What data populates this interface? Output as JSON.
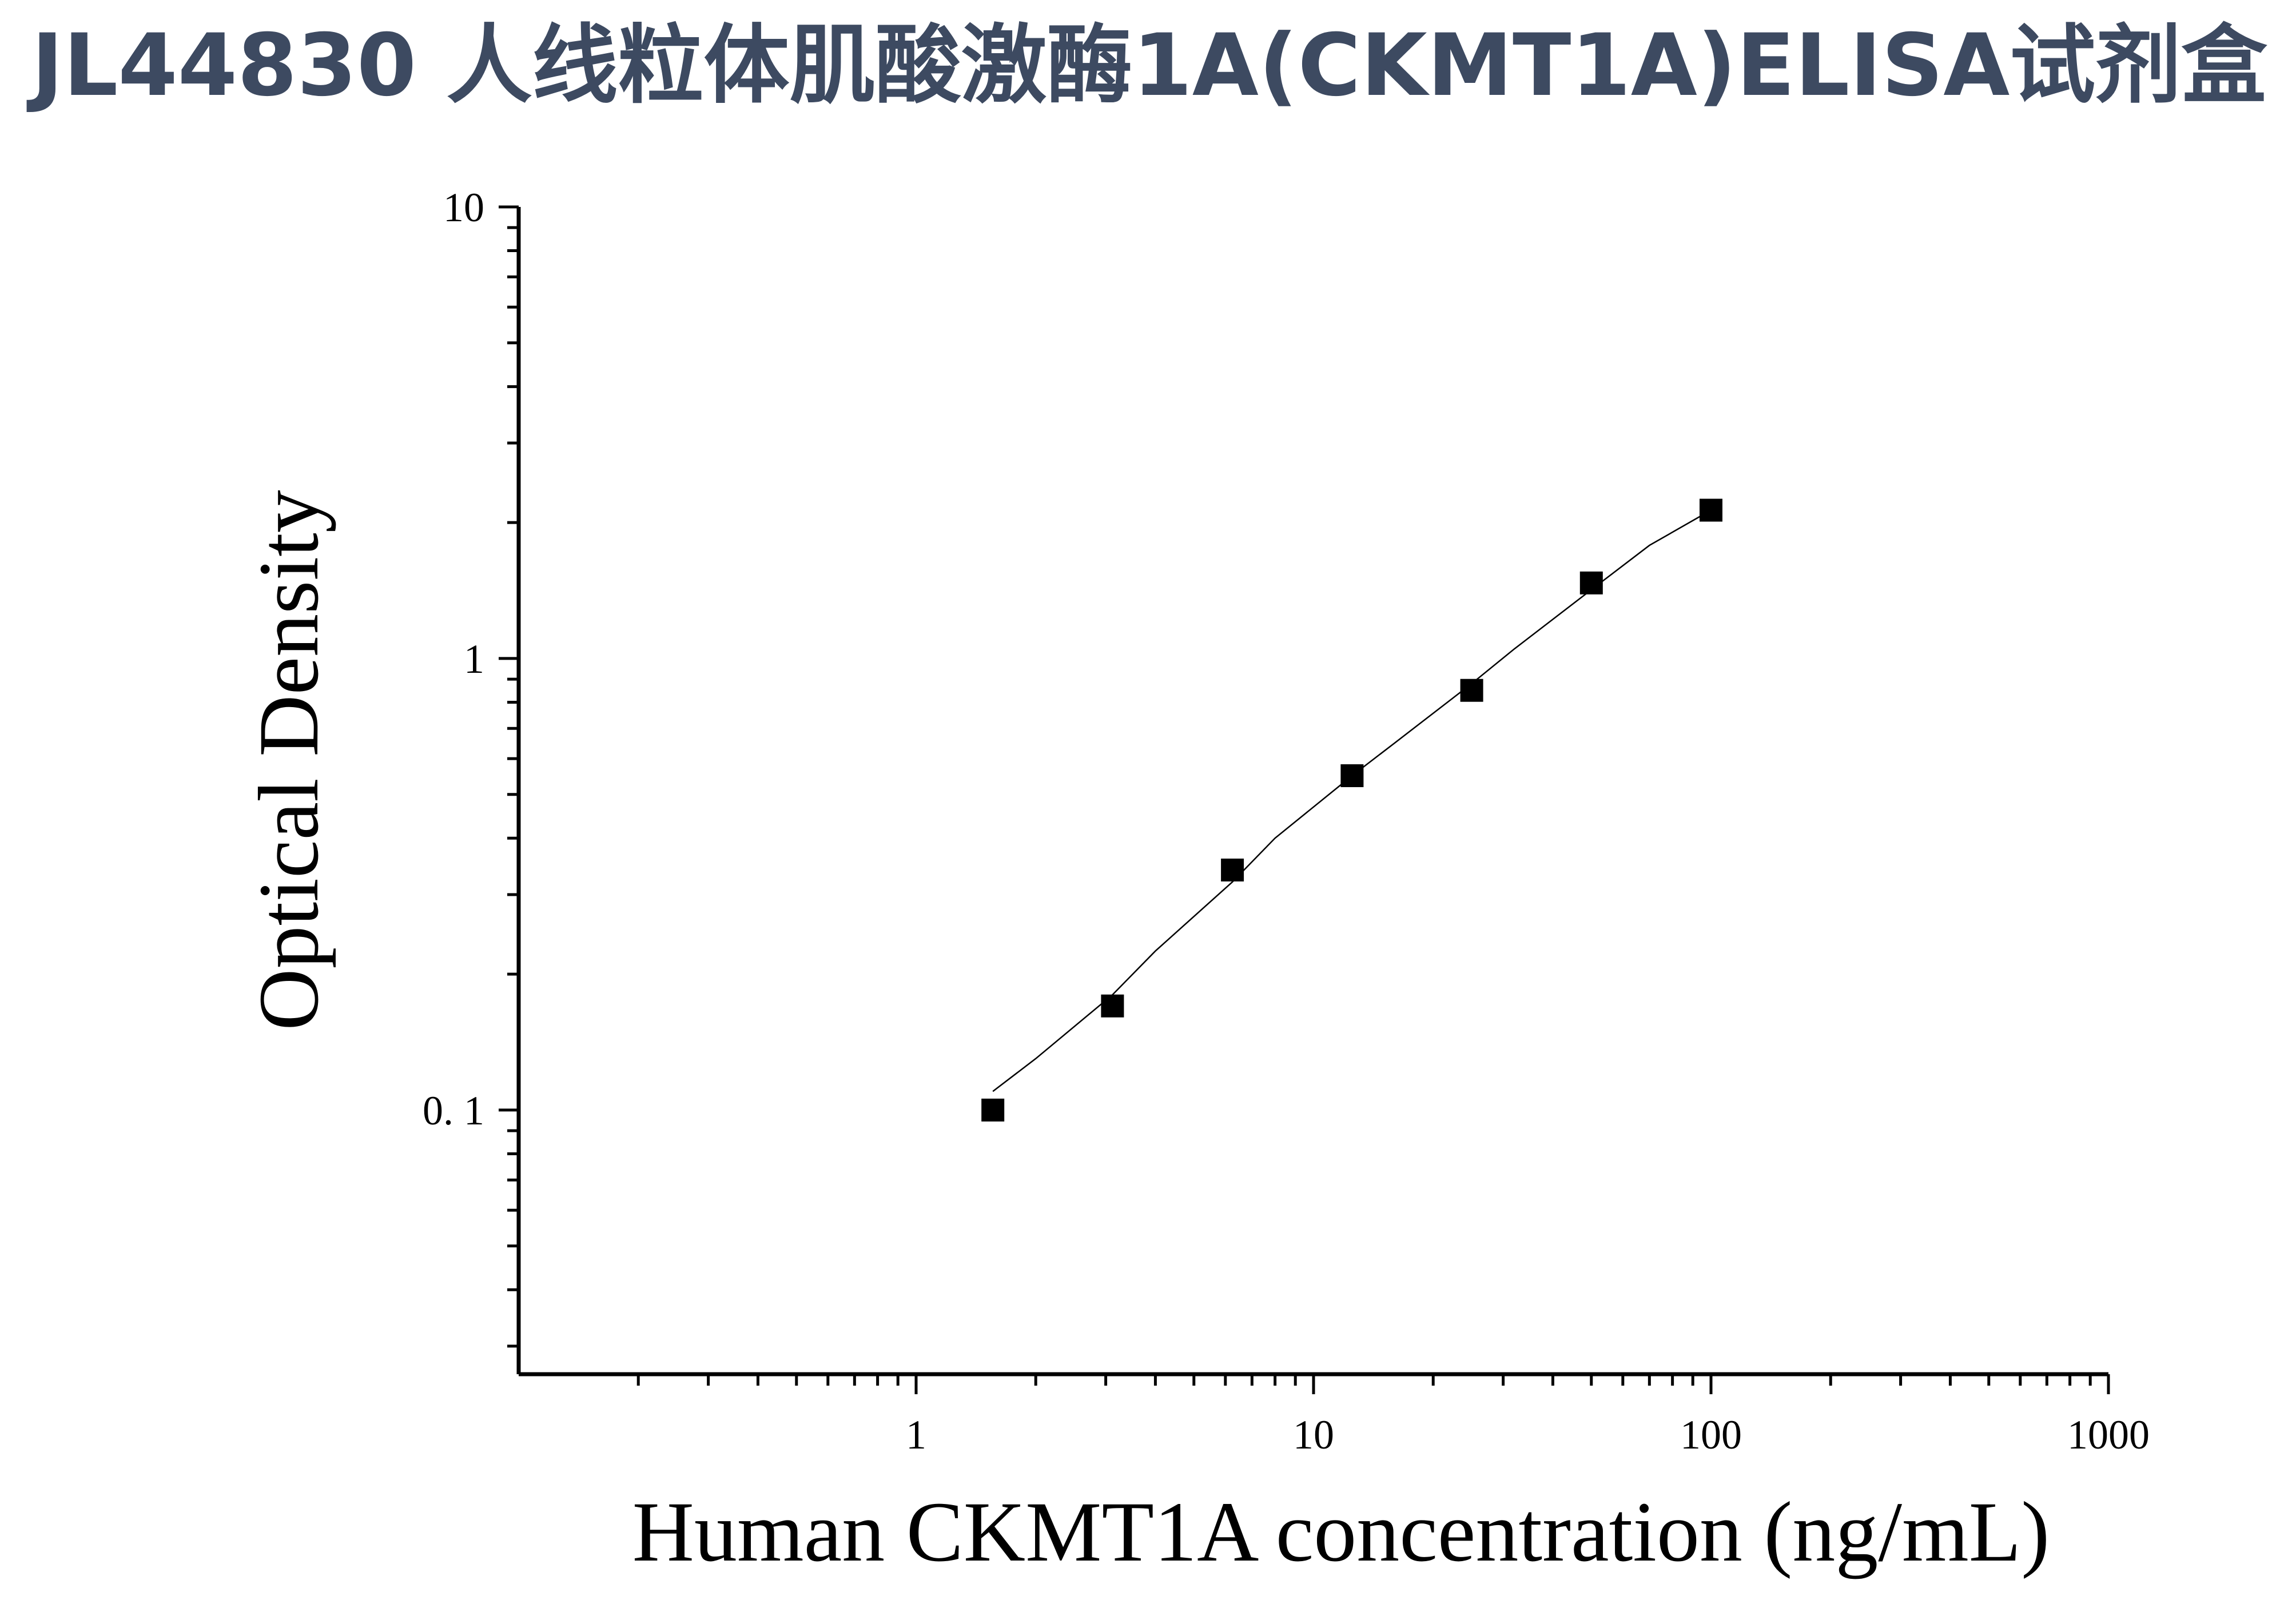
{
  "title": "JL44830 人线粒体肌酸激酶1A(CKMT1A)ELISA试剂盒",
  "colors": {
    "title": "#3d4a61",
    "marks": "#000000",
    "background": "#ffffff"
  },
  "chart_data": {
    "type": "scatter",
    "title": "JL44830 人线粒体肌酸激酶1A(CKMT1A)ELISA试剂盒",
    "xlabel": "Human CKMT1A concentration (ng/mL)",
    "ylabel": "Optical Density",
    "xscale": "log",
    "yscale": "log",
    "xlim": [
      0.1,
      1000
    ],
    "ylim": [
      0.026,
      10
    ],
    "xticks": [
      {
        "value": 1,
        "label": "1"
      },
      {
        "value": 10,
        "label": "10"
      },
      {
        "value": 100,
        "label": "100"
      },
      {
        "value": 1000,
        "label": "1000"
      }
    ],
    "yticks": [
      {
        "value": 0.1,
        "label": "0. 1"
      },
      {
        "value": 1,
        "label": "1"
      },
      {
        "value": 10,
        "label": "10"
      }
    ],
    "grid": false,
    "legend": "none",
    "series": [
      {
        "marker": "square",
        "x": [
          1.56,
          3.12,
          6.25,
          12.5,
          25,
          50,
          100
        ],
        "y": [
          0.1,
          0.17,
          0.34,
          0.55,
          0.85,
          1.47,
          2.13
        ]
      }
    ],
    "fit_curve": {
      "x": [
        1.56,
        2,
        3.12,
        4,
        6.25,
        8,
        12.5,
        16,
        25,
        32,
        50,
        70,
        100
      ],
      "y": [
        0.11,
        0.13,
        0.18,
        0.225,
        0.32,
        0.4,
        0.55,
        0.65,
        0.88,
        1.05,
        1.42,
        1.78,
        2.13
      ]
    }
  }
}
